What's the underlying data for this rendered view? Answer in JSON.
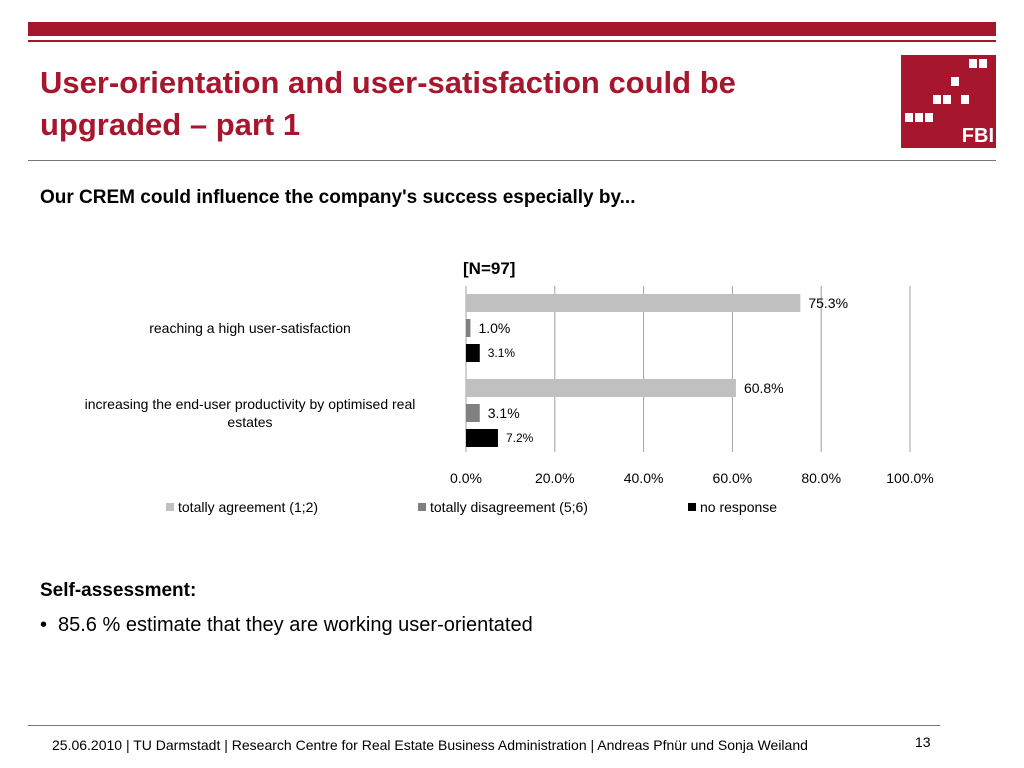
{
  "slide": {
    "title": "User-orientation and user-satisfaction could be upgraded – part 1",
    "subtitle": "Our CREM could influence the company's success especially  by...",
    "logo_text": "FBI",
    "section_heading": "Self-assessment:",
    "bullet_marker": "•",
    "bullet_text": "85.6 % estimate that they are working user-orientated",
    "footer": "25.06.2010  | TU Darmstadt | Research Centre for Real Estate Business Administration |  Andreas Pfnür und Sonja Weiland",
    "page_number": "13"
  },
  "chart_data": {
    "type": "bar",
    "orientation": "horizontal",
    "title": "[N=97]",
    "categories": [
      "reaching a high user-satisfaction",
      "increasing the end-user productivity by optimised real estates"
    ],
    "category_lines": [
      [
        "reaching a high user-satisfaction"
      ],
      [
        "increasing the end-user productivity by optimised real",
        "estates"
      ]
    ],
    "series": [
      {
        "name": "totally agreement (1;2)",
        "color": "#c0c0c0",
        "values": [
          75.3,
          60.8
        ],
        "labels": [
          "75.3%",
          "60.8%"
        ]
      },
      {
        "name": "totally disagreement (5;6)",
        "color": "#808080",
        "values": [
          1.0,
          3.1
        ],
        "labels": [
          "1.0%",
          "3.1%"
        ]
      },
      {
        "name": "no response",
        "color": "#000000",
        "values": [
          3.1,
          7.2
        ],
        "labels": [
          "3.1%",
          "7.2%"
        ]
      }
    ],
    "xlim": [
      0,
      100
    ],
    "xticks": [
      "0.0%",
      "20.0%",
      "40.0%",
      "60.0%",
      "80.0%",
      "100.0%"
    ],
    "grid": true,
    "legend_position": "bottom"
  }
}
